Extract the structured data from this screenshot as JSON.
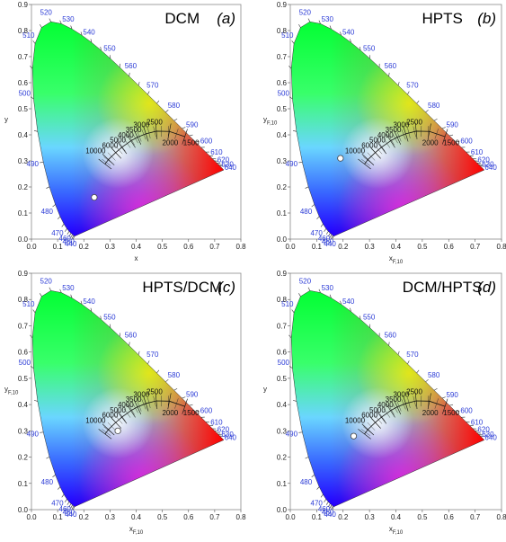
{
  "figure": {
    "panels": [
      {
        "id": "a",
        "title": "DCM",
        "letter": "(a)",
        "xlabel": "x",
        "ylabel": "y",
        "ylabel_sub": "",
        "xlabel_sub": ""
      },
      {
        "id": "b",
        "title": "HPTS",
        "letter": "(b)",
        "xlabel": "x",
        "xlabel_sub": "F,10",
        "ylabel": "y",
        "ylabel_sub": "F,10"
      },
      {
        "id": "c",
        "title": "HPTS/DCM",
        "letter": "(c)",
        "xlabel": "x",
        "xlabel_sub": "F,10",
        "ylabel": "y",
        "ylabel_sub": "F,10"
      },
      {
        "id": "d",
        "title": "DCM/HPTS",
        "letter": "(d)",
        "xlabel": "x",
        "xlabel_sub": "F,10",
        "ylabel": "y",
        "ylabel_sub": ""
      }
    ]
  },
  "chart_data": [
    {
      "type": "scatter",
      "title": "DCM",
      "panel": "(a)",
      "xlabel": "x",
      "ylabel": "y",
      "xlim": [
        0,
        0.8
      ],
      "ylim": [
        0,
        0.9
      ],
      "points": [
        {
          "x": 0.24,
          "y": 0.16
        }
      ],
      "xticks": [
        "0.0",
        "0.1",
        "0.2",
        "0.3",
        "0.4",
        "0.5",
        "0.6",
        "0.7",
        "0.8"
      ],
      "yticks": [
        "0.0",
        "0.1",
        "0.2",
        "0.3",
        "0.4",
        "0.5",
        "0.6",
        "0.7",
        "0.8",
        "0.9"
      ],
      "wavelength_labels": [
        "440",
        "450",
        "460",
        "470",
        "480",
        "490",
        "500",
        "510",
        "520",
        "530",
        "540",
        "550",
        "560",
        "570",
        "580",
        "590",
        "600",
        "610",
        "620",
        "630",
        "640"
      ],
      "cct_labels": [
        "10000",
        "6000",
        "5000",
        "4000",
        "3500",
        "3000",
        "2500",
        "2000",
        "1500"
      ]
    },
    {
      "type": "scatter",
      "title": "HPTS",
      "panel": "(b)",
      "xlabel": "x F,10",
      "ylabel": "y F,10",
      "xlim": [
        0,
        0.8
      ],
      "ylim": [
        0,
        0.9
      ],
      "points": [
        {
          "x": 0.19,
          "y": 0.31
        }
      ],
      "xticks": [
        "0.0",
        "0.1",
        "0.2",
        "0.3",
        "0.4",
        "0.5",
        "0.6",
        "0.7",
        "0.8"
      ],
      "yticks": [
        "0.0",
        "0.1",
        "0.2",
        "0.3",
        "0.4",
        "0.5",
        "0.6",
        "0.7",
        "0.8",
        "0.9"
      ],
      "wavelength_labels": [
        "440",
        "450",
        "460",
        "470",
        "480",
        "490",
        "500",
        "510",
        "520",
        "530",
        "540",
        "550",
        "560",
        "570",
        "580",
        "590",
        "600",
        "610",
        "620",
        "630",
        "640"
      ],
      "cct_labels": [
        "10000",
        "6000",
        "5000",
        "4000",
        "3500",
        "3000",
        "2500",
        "2000",
        "1500"
      ]
    },
    {
      "type": "scatter",
      "title": "HPTS/DCM",
      "panel": "(c)",
      "xlabel": "x F,10",
      "ylabel": "y F,10",
      "xlim": [
        0,
        0.8
      ],
      "ylim": [
        0,
        0.9
      ],
      "points": [
        {
          "x": 0.33,
          "y": 0.3
        }
      ],
      "xticks": [
        "0.0",
        "0.1",
        "0.2",
        "0.3",
        "0.4",
        "0.5",
        "0.6",
        "0.7",
        "0.8"
      ],
      "yticks": [
        "0.0",
        "0.1",
        "0.2",
        "0.3",
        "0.4",
        "0.5",
        "0.6",
        "0.7",
        "0.8",
        "0.9"
      ],
      "wavelength_labels": [
        "440",
        "450",
        "460",
        "470",
        "480",
        "490",
        "500",
        "510",
        "520",
        "530",
        "540",
        "550",
        "560",
        "570",
        "580",
        "590",
        "600",
        "610",
        "620",
        "630",
        "640"
      ],
      "cct_labels": [
        "10000",
        "6000",
        "5000",
        "4000",
        "3500",
        "3000",
        "2500",
        "2000",
        "1500"
      ]
    },
    {
      "type": "scatter",
      "title": "DCM/HPTS",
      "panel": "(d)",
      "xlabel": "x F,10",
      "ylabel": "y",
      "xlim": [
        0,
        0.8
      ],
      "ylim": [
        0,
        0.9
      ],
      "points": [
        {
          "x": 0.24,
          "y": 0.28
        }
      ],
      "xticks": [
        "0.0",
        "0.1",
        "0.2",
        "0.3",
        "0.4",
        "0.5",
        "0.6",
        "0.7",
        "0.8"
      ],
      "yticks": [
        "0.0",
        "0.1",
        "0.2",
        "0.3",
        "0.4",
        "0.5",
        "0.6",
        "0.7",
        "0.8",
        "0.9"
      ],
      "wavelength_labels": [
        "440",
        "450",
        "460",
        "470",
        "480",
        "490",
        "500",
        "510",
        "520",
        "530",
        "540",
        "550",
        "560",
        "570",
        "580",
        "590",
        "600",
        "610",
        "620",
        "630",
        "640"
      ],
      "cct_labels": [
        "10000",
        "6000",
        "5000",
        "4000",
        "3500",
        "3000",
        "2500",
        "2000",
        "1500"
      ]
    }
  ],
  "colors": {
    "wavelength_text": "#2b3bd6",
    "frame": "#8a8a8a",
    "point_fill": "#ffffff",
    "point_stroke": "#444444"
  }
}
